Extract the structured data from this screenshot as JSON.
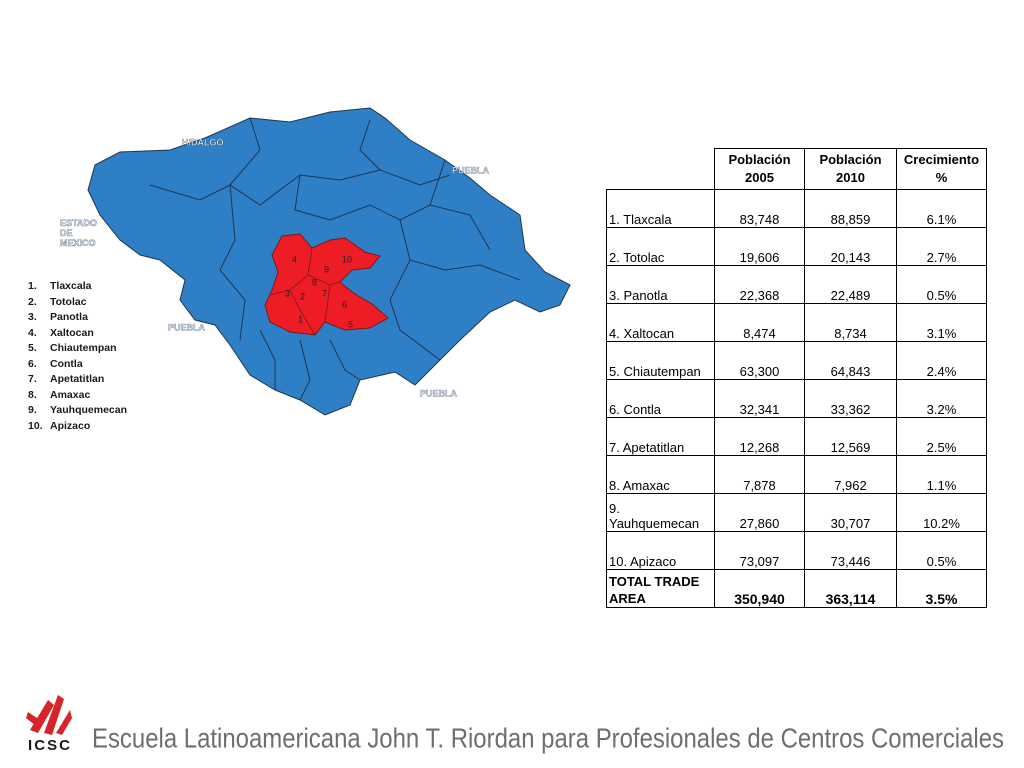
{
  "map": {
    "labels": [
      "HIDALGO",
      "PUEBLA",
      "ESTADO DE MEXICO",
      "PUEBLA",
      "PUEBLA"
    ],
    "numbers": [
      "4",
      "10",
      "9",
      "8",
      "3",
      "2",
      "7",
      "6",
      "1",
      "5"
    ]
  },
  "legend": [
    [
      "1.",
      "Tlaxcala"
    ],
    [
      "2.",
      "Totolac"
    ],
    [
      "3.",
      "Panotla"
    ],
    [
      "4.",
      "Xaltocan"
    ],
    [
      "5.",
      "Chiautempan"
    ],
    [
      "6.",
      "Contla"
    ],
    [
      "7.",
      "Apetatitlan"
    ],
    [
      "8.",
      "Amaxac"
    ],
    [
      "9.",
      "Yauhquemecan"
    ],
    [
      "10.",
      "Apizaco"
    ]
  ],
  "table": {
    "header": [
      "Población 2005",
      "Población 2010",
      "Crecimiento %"
    ],
    "rows": [
      [
        "1. Tlaxcala",
        "83,748",
        "88,859",
        "6.1%"
      ],
      [
        "2. Totolac",
        "19,606",
        "20,143",
        "2.7%"
      ],
      [
        "3. Panotla",
        "22,368",
        "22,489",
        "0.5%"
      ],
      [
        "4. Xaltocan",
        "8,474",
        "8,734",
        "3.1%"
      ],
      [
        "5. Chiautempan",
        "63,300",
        "64,843",
        "2.4%"
      ],
      [
        "6. Contla",
        "32,341",
        "33,362",
        "3.2%"
      ],
      [
        "7. Apetatitlan",
        "12,268",
        "12,569",
        "2.5%"
      ],
      [
        "8. Amaxac",
        "7,878",
        "7,962",
        "1.1%"
      ],
      [
        "9. Yauhquemecan",
        "27,860",
        "30,707",
        "10.2%"
      ],
      [
        "10. Apizaco",
        "73,097",
        "73,446",
        "0.5%"
      ]
    ],
    "total": [
      "TOTAL TRADE AREA",
      "350,940",
      "363,114",
      "3.5%"
    ]
  },
  "footer": {
    "logo": "ICSC",
    "text": "Escuela Latinoamericana John T. Riordan para Profesionales de Centros Comerciales"
  }
}
